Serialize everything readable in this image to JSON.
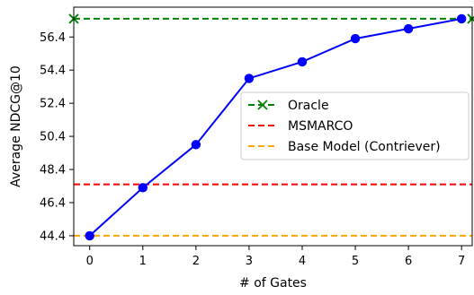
{
  "chart_data": {
    "type": "line",
    "xlabel": "# of Gates",
    "ylabel": "Average NDCG@10",
    "x": [
      0,
      1,
      2,
      3,
      4,
      5,
      6,
      7
    ],
    "xticks": [
      "0",
      "1",
      "2",
      "3",
      "4",
      "5",
      "6",
      "7"
    ],
    "yticks": [
      "44.4",
      "46.4",
      "48.4",
      "50.4",
      "52.4",
      "54.4",
      "56.4"
    ],
    "xlim": [
      -0.3,
      7.2
    ],
    "ylim": [
      43.8,
      58.2
    ],
    "series": [
      {
        "values": [
          44.4,
          47.3,
          49.9,
          53.9,
          54.9,
          56.3,
          56.9,
          57.5
        ],
        "color": "#0000ff",
        "marker": "circle",
        "linestyle": "solid"
      }
    ],
    "reference_lines": [
      {
        "name": "Oracle",
        "y": 57.5,
        "color": "#008000",
        "linestyle": "dashed",
        "marker": "x"
      },
      {
        "name": "MSMARCO",
        "y": 47.5,
        "color": "#ff0000",
        "linestyle": "dashed"
      },
      {
        "name": "Base Model (Contriever)",
        "y": 44.4,
        "color": "#ffa500",
        "linestyle": "dashed"
      }
    ],
    "legend": {
      "position": "center-right",
      "entries": [
        "Oracle",
        "MSMARCO",
        "Base Model (Contriever)"
      ]
    },
    "grid": false
  }
}
